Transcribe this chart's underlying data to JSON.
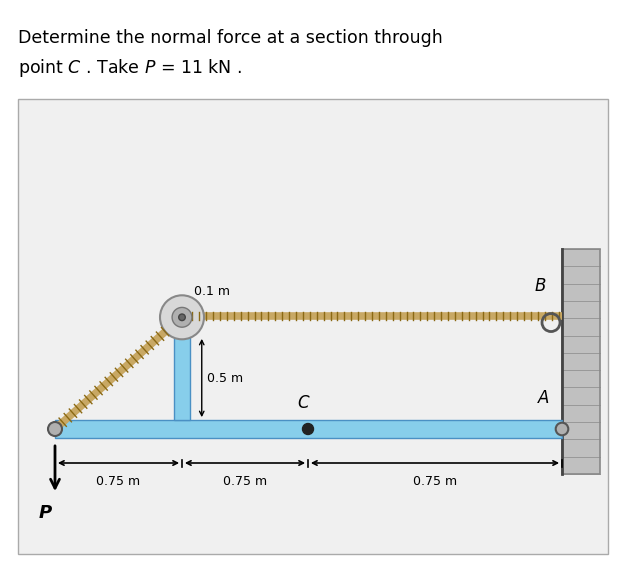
{
  "title_line1": "Determine the normal force at a section through",
  "title_line2": "point $C$ . Take $P$ = 11 kN .",
  "title_fontsize": 12.5,
  "fig_width": 6.31,
  "fig_height": 5.84,
  "bg_color": "#ffffff",
  "box_facecolor": "#f0f0f0",
  "box_edgecolor": "#aaaaaa",
  "beam_color": "#87CEEB",
  "beam_color_dark": "#4A90C4",
  "rope_color": "#C8A864",
  "rope_dark": "#8B6914",
  "wall_color": "#C0C0C0",
  "wall_edge": "#888888",
  "label_A": "A",
  "label_B": "B",
  "label_C": "C",
  "label_P": "P",
  "dim_075": "0.75 m",
  "dim_05": "0.5 m",
  "dim_01": "0.1 m"
}
